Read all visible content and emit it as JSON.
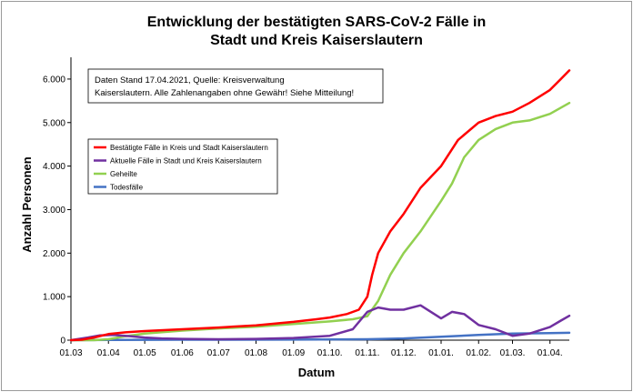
{
  "chart_data": {
    "type": "line",
    "title": [
      "Entwicklung der bestätigten SARS-CoV-2 Fälle in",
      "Stadt und Kreis Kaiserslautern"
    ],
    "xlabel": "Datum",
    "ylabel": "Anzahl Personen",
    "x_start": "2020-03-01",
    "x_end": "2021-04-17",
    "ylim": [
      0,
      6500
    ],
    "yticks": [
      0,
      1000,
      2000,
      3000,
      4000,
      5000,
      6000
    ],
    "ytick_labels": [
      "0",
      "1.000",
      "2.000",
      "3.000",
      "4.000",
      "5.000",
      "6.000"
    ],
    "xticks": [
      "2020-03-01",
      "2020-04-01",
      "2020-05-01",
      "2020-06-01",
      "2020-07-01",
      "2020-08-01",
      "2020-09-01",
      "2020-10-01",
      "2020-11-01",
      "2020-12-01",
      "2021-01-01",
      "2021-02-01",
      "2021-03-01",
      "2021-04-01"
    ],
    "xtick_labels": [
      "01.03",
      "01.04",
      "01.05",
      "01.06",
      "01.07",
      "01.08",
      "01.09",
      "01.10.",
      "01.11.",
      "01.12.",
      "01.01.",
      "01.02.",
      "01.03.",
      "01.04."
    ],
    "note": [
      "Daten Stand 17.04.2021, Quelle: Kreisverwaltung",
      "Kaiserslautern. Alle Zahlenangaben ohne Gewähr! Siehe Mitteilung!"
    ],
    "legend_position": "upper-left",
    "grid": false,
    "series": [
      {
        "name": "Bestätigte Fälle in Kreis und Stadt Kaiserslautern",
        "color": "#ff0000",
        "points": [
          [
            "2020-03-01",
            0
          ],
          [
            "2020-03-10",
            10
          ],
          [
            "2020-03-20",
            60
          ],
          [
            "2020-04-01",
            140
          ],
          [
            "2020-04-15",
            180
          ],
          [
            "2020-05-01",
            210
          ],
          [
            "2020-06-01",
            250
          ],
          [
            "2020-07-01",
            290
          ],
          [
            "2020-08-01",
            340
          ],
          [
            "2020-09-01",
            420
          ],
          [
            "2020-09-20",
            480
          ],
          [
            "2020-10-01",
            520
          ],
          [
            "2020-10-15",
            600
          ],
          [
            "2020-10-25",
            700
          ],
          [
            "2020-11-01",
            1000
          ],
          [
            "2020-11-05",
            1500
          ],
          [
            "2020-11-10",
            2000
          ],
          [
            "2020-11-20",
            2500
          ],
          [
            "2020-12-01",
            2900
          ],
          [
            "2020-12-15",
            3500
          ],
          [
            "2021-01-01",
            4000
          ],
          [
            "2021-01-15",
            4600
          ],
          [
            "2021-02-01",
            5000
          ],
          [
            "2021-02-15",
            5150
          ],
          [
            "2021-03-01",
            5250
          ],
          [
            "2021-03-15",
            5450
          ],
          [
            "2021-04-01",
            5750
          ],
          [
            "2021-04-10",
            6000
          ],
          [
            "2021-04-17",
            6200
          ]
        ]
      },
      {
        "name": "Aktuelle Fälle in Stadt und Kreis Kaiserslautern",
        "color": "#7030a0",
        "points": [
          [
            "2020-03-01",
            0
          ],
          [
            "2020-03-15",
            60
          ],
          [
            "2020-03-25",
            110
          ],
          [
            "2020-04-05",
            120
          ],
          [
            "2020-04-20",
            90
          ],
          [
            "2020-05-01",
            60
          ],
          [
            "2020-05-15",
            40
          ],
          [
            "2020-06-01",
            30
          ],
          [
            "2020-07-01",
            20
          ],
          [
            "2020-08-01",
            30
          ],
          [
            "2020-09-01",
            50
          ],
          [
            "2020-10-01",
            100
          ],
          [
            "2020-10-20",
            250
          ],
          [
            "2020-11-01",
            650
          ],
          [
            "2020-11-10",
            750
          ],
          [
            "2020-11-20",
            700
          ],
          [
            "2020-12-01",
            700
          ],
          [
            "2020-12-15",
            800
          ],
          [
            "2021-01-01",
            500
          ],
          [
            "2021-01-10",
            650
          ],
          [
            "2021-01-20",
            600
          ],
          [
            "2021-02-01",
            350
          ],
          [
            "2021-02-15",
            250
          ],
          [
            "2021-03-01",
            100
          ],
          [
            "2021-03-15",
            150
          ],
          [
            "2021-04-01",
            300
          ],
          [
            "2021-04-10",
            450
          ],
          [
            "2021-04-17",
            560
          ]
        ]
      },
      {
        "name": "Geheilte",
        "color": "#92d050",
        "points": [
          [
            "2020-03-01",
            0
          ],
          [
            "2020-03-20",
            0
          ],
          [
            "2020-04-01",
            20
          ],
          [
            "2020-04-15",
            90
          ],
          [
            "2020-05-01",
            150
          ],
          [
            "2020-06-01",
            220
          ],
          [
            "2020-07-01",
            270
          ],
          [
            "2020-08-01",
            310
          ],
          [
            "2020-09-01",
            370
          ],
          [
            "2020-10-01",
            430
          ],
          [
            "2020-10-20",
            480
          ],
          [
            "2020-11-01",
            550
          ],
          [
            "2020-11-10",
            900
          ],
          [
            "2020-11-20",
            1500
          ],
          [
            "2020-12-01",
            2000
          ],
          [
            "2020-12-15",
            2500
          ],
          [
            "2021-01-01",
            3200
          ],
          [
            "2021-01-10",
            3600
          ],
          [
            "2021-01-20",
            4200
          ],
          [
            "2021-02-01",
            4600
          ],
          [
            "2021-02-15",
            4850
          ],
          [
            "2021-03-01",
            5000
          ],
          [
            "2021-03-15",
            5050
          ],
          [
            "2021-04-01",
            5200
          ],
          [
            "2021-04-17",
            5450
          ]
        ]
      },
      {
        "name": "Todesfälle",
        "color": "#4472c4",
        "points": [
          [
            "2020-03-01",
            0
          ],
          [
            "2020-04-01",
            5
          ],
          [
            "2020-06-01",
            10
          ],
          [
            "2020-09-01",
            12
          ],
          [
            "2020-11-01",
            20
          ],
          [
            "2020-12-01",
            40
          ],
          [
            "2021-01-01",
            80
          ],
          [
            "2021-02-01",
            120
          ],
          [
            "2021-03-01",
            150
          ],
          [
            "2021-04-01",
            160
          ],
          [
            "2021-04-17",
            170
          ]
        ]
      }
    ]
  }
}
